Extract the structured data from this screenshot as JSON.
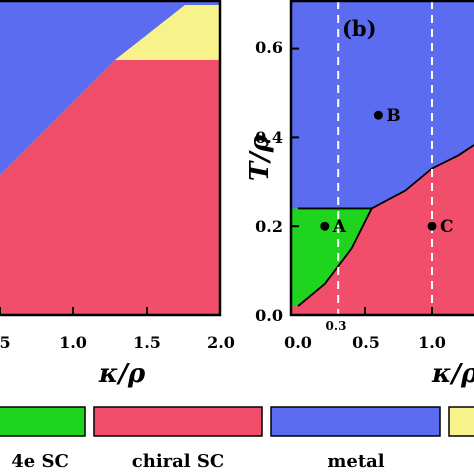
{
  "colors": {
    "4e_sc": "#1ed41e",
    "chiral_sc": "#f04e6a",
    "metal": "#5b6cf0",
    "yellow": "#f8f28a"
  },
  "chart_data": [
    {
      "type": "area",
      "panel": "a",
      "xlabel": "κ/ρ",
      "ylabel": "",
      "x_ticks": [
        "1.0",
        "1.5",
        "2.0"
      ],
      "x_ticks_partial": [
        "5"
      ],
      "xlim": [
        0.0,
        2.0
      ],
      "regions": [
        {
          "name": "chiral SC",
          "color_key": "chiral_sc"
        },
        {
          "name": "metal",
          "color_key": "metal"
        },
        {
          "name": "yellow",
          "color_key": "yellow"
        }
      ]
    },
    {
      "type": "area",
      "panel": "b",
      "title": "(b)",
      "xlabel": "κ/ρ",
      "ylabel": "T/ρ",
      "xlim": [
        0.0,
        2.0
      ],
      "ylim": [
        0.0,
        0.7
      ],
      "x_ticks": [
        "0.0",
        "0.5",
        "1.0"
      ],
      "y_ticks": [
        "0.0",
        "0.2",
        "0.4",
        "0.6"
      ],
      "dashed_lines": [
        {
          "x": 0.3,
          "label": "0.3"
        },
        {
          "x": 1.0,
          "label": ""
        }
      ],
      "points": [
        {
          "label": "A",
          "x": 0.2,
          "y": 0.2
        },
        {
          "label": "B",
          "x": 0.6,
          "y": 0.45
        },
        {
          "label": "C",
          "x": 1.0,
          "y": 0.2
        }
      ],
      "boundaries": {
        "metal_4e": [
          [
            0.0,
            0.24
          ],
          [
            0.2,
            0.24
          ],
          [
            0.55,
            0.24
          ]
        ],
        "metal_chiral": [
          [
            0.55,
            0.24
          ],
          [
            0.8,
            0.28
          ],
          [
            1.0,
            0.33
          ],
          [
            1.2,
            0.36
          ],
          [
            1.4,
            0.4
          ],
          [
            2.0,
            0.45
          ]
        ],
        "4e_chiral": [
          [
            0.0,
            0.02
          ],
          [
            0.2,
            0.07
          ],
          [
            0.4,
            0.15
          ],
          [
            0.55,
            0.24
          ]
        ]
      }
    }
  ],
  "legend": [
    {
      "label": "4e SC",
      "color_key": "4e_sc"
    },
    {
      "label": "chiral SC",
      "color_key": "chiral_sc"
    },
    {
      "label": "metal",
      "color_key": "metal"
    },
    {
      "label": "",
      "color_key": "yellow"
    }
  ]
}
